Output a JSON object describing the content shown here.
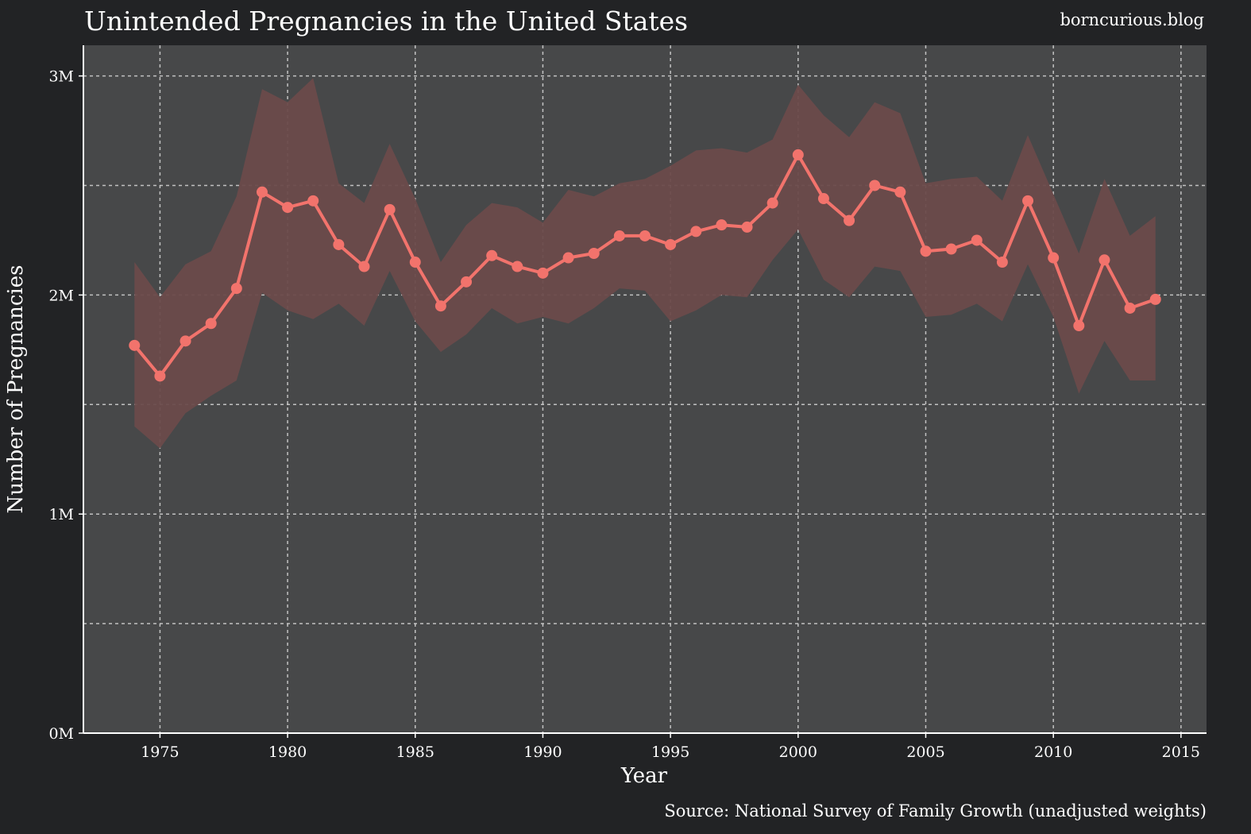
{
  "chart_data": {
    "type": "line",
    "title": "Unintended Pregnancies in the United States",
    "branding": "borncurious.blog",
    "source": "Source: National Survey of Family Growth (unadjusted weights)",
    "xlabel": "Year",
    "ylabel": "Number of Pregnancies",
    "xlim": [
      1972,
      2016
    ],
    "ylim": [
      0,
      3140000
    ],
    "x_ticks": [
      1975,
      1980,
      1985,
      1990,
      1995,
      2000,
      2005,
      2010,
      2015
    ],
    "y_ticks": [
      {
        "value": 0,
        "label": "0M"
      },
      {
        "value": 1000000,
        "label": "1M"
      },
      {
        "value": 2000000,
        "label": "2M"
      },
      {
        "value": 3000000,
        "label": "3M"
      }
    ],
    "y_minor_ticks": [
      500000,
      1500000,
      2500000
    ],
    "grid": true,
    "colors": {
      "line": "#f2736c",
      "band": "#6b4b4b",
      "panel": "#474849",
      "background": "#222325",
      "text": "#ffffff",
      "grid": "#d8d8d8"
    },
    "series": [
      {
        "name": "Unintended pregnancies",
        "x": [
          1974,
          1975,
          1976,
          1977,
          1978,
          1979,
          1980,
          1981,
          1982,
          1983,
          1984,
          1985,
          1986,
          1987,
          1988,
          1989,
          1990,
          1991,
          1992,
          1993,
          1994,
          1995,
          1996,
          1997,
          1998,
          1999,
          2000,
          2001,
          2002,
          2003,
          2004,
          2005,
          2006,
          2007,
          2008,
          2009,
          2010,
          2011,
          2012,
          2013,
          2014
        ],
        "values": [
          1770000,
          1630000,
          1790000,
          1870000,
          2030000,
          2470000,
          2400000,
          2430000,
          2230000,
          2130000,
          2390000,
          2150000,
          1950000,
          2060000,
          2180000,
          2130000,
          2100000,
          2170000,
          2190000,
          2270000,
          2270000,
          2230000,
          2290000,
          2320000,
          2310000,
          2420000,
          2640000,
          2440000,
          2340000,
          2500000,
          2470000,
          2200000,
          2210000,
          2250000,
          2150000,
          2430000,
          2170000,
          1860000,
          2160000,
          1940000,
          1980000
        ],
        "upper": [
          2150000,
          1990000,
          2140000,
          2200000,
          2450000,
          2940000,
          2880000,
          2990000,
          2510000,
          2420000,
          2690000,
          2440000,
          2150000,
          2320000,
          2420000,
          2400000,
          2330000,
          2480000,
          2450000,
          2510000,
          2530000,
          2590000,
          2660000,
          2670000,
          2650000,
          2710000,
          2960000,
          2820000,
          2720000,
          2880000,
          2830000,
          2510000,
          2530000,
          2540000,
          2430000,
          2730000,
          2460000,
          2190000,
          2530000,
          2270000,
          2360000
        ],
        "lower": [
          1400000,
          1300000,
          1460000,
          1540000,
          1610000,
          2010000,
          1930000,
          1890000,
          1960000,
          1860000,
          2110000,
          1880000,
          1740000,
          1820000,
          1940000,
          1870000,
          1900000,
          1870000,
          1940000,
          2030000,
          2020000,
          1880000,
          1930000,
          2000000,
          1990000,
          2160000,
          2300000,
          2070000,
          1990000,
          2130000,
          2110000,
          1900000,
          1910000,
          1960000,
          1880000,
          2140000,
          1900000,
          1550000,
          1790000,
          1610000,
          1610000
        ]
      }
    ]
  }
}
